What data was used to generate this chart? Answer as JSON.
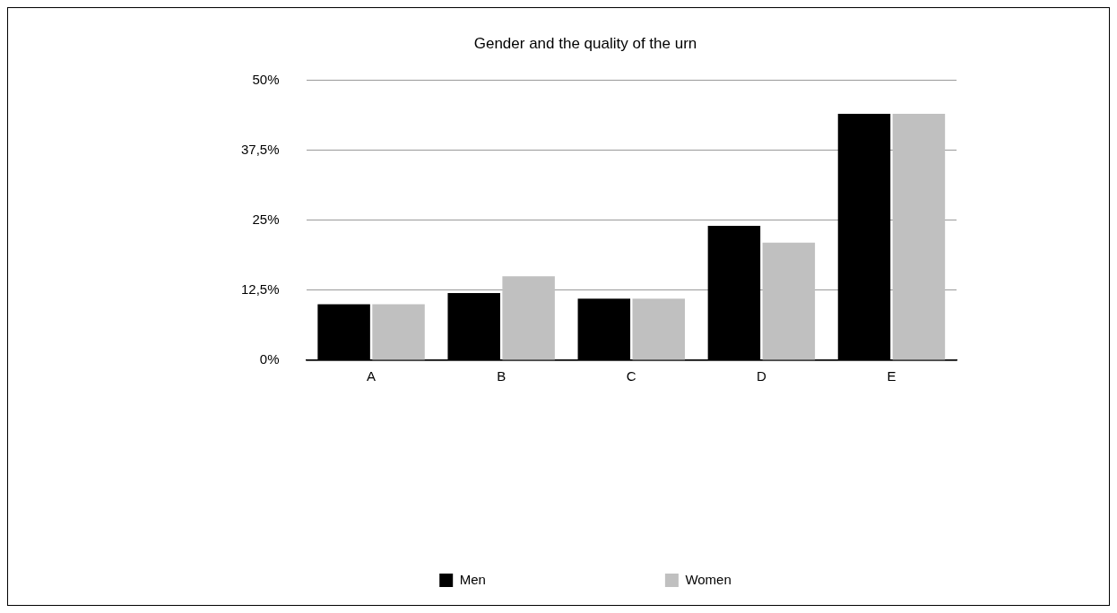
{
  "chart_data": {
    "type": "bar",
    "title": "Gender and the quality of the urn",
    "categories": [
      "A",
      "B",
      "C",
      "D",
      "E"
    ],
    "series": [
      {
        "name": "Men",
        "color": "#000000",
        "values": [
          10,
          12,
          11,
          24,
          44
        ]
      },
      {
        "name": "Women",
        "color": "#c0c0c0",
        "values": [
          10,
          15,
          11,
          21,
          44
        ]
      }
    ],
    "ylim": [
      0,
      50
    ],
    "yticks": [
      {
        "value": 0,
        "label": "0%"
      },
      {
        "value": 12.5,
        "label": "12,5%"
      },
      {
        "value": 25,
        "label": "25%"
      },
      {
        "value": 37.5,
        "label": "37,5%"
      },
      {
        "value": 50,
        "label": "50%"
      }
    ],
    "grid": "y",
    "legend": "bottom"
  }
}
